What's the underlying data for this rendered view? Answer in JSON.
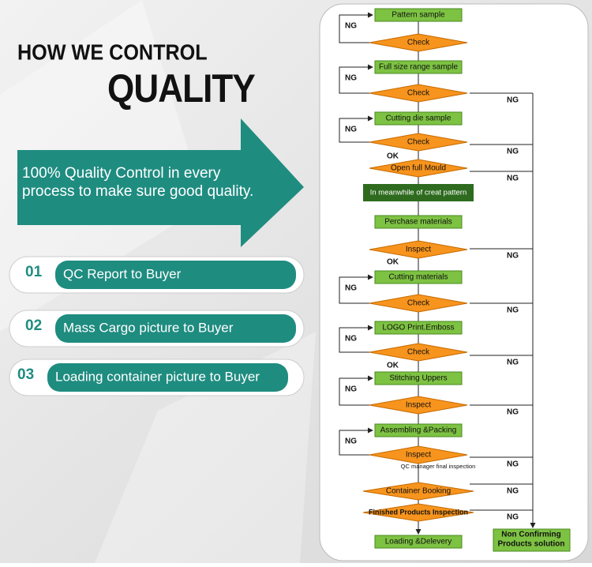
{
  "header": {
    "line1": "HOW WE CONTROL",
    "line2": "QUALITY"
  },
  "arrow_text": [
    "100% Quality Control in every",
    "process to make sure good quality."
  ],
  "items": [
    {
      "number": "01",
      "label": "QC Report to Buyer"
    },
    {
      "number": "02",
      "label": "Mass Cargo picture to Buyer"
    },
    {
      "number": "03",
      "label": "Loading container picture to Buyer"
    }
  ],
  "flow": {
    "nodes": [
      "Pattern sample",
      "Check",
      "Full size range sample",
      "Check",
      "Cutting die sample",
      "Check",
      "Open full Mould",
      "In meanwhile of creat pattern",
      "Perchase materials",
      "Inspect",
      "Cutting materials",
      "Check",
      "LOGO Print.Emboss",
      "Check",
      "Stitching Uppers",
      "Inspect",
      "Assembling &Packing",
      "Inspect",
      "QC manager final inspection",
      "Container Booking",
      "Finished Products Inspection",
      "Loading &Delevery"
    ],
    "side_box": [
      "Non Confirming",
      "Products solution"
    ],
    "left_ng": [
      "NG",
      "NG",
      "NG",
      "NG",
      "NG",
      "NG",
      "NG"
    ],
    "ok": [
      "OK",
      "OK",
      "OK"
    ],
    "right_ng": [
      "NG",
      "NG",
      "NG",
      "NG",
      "NG",
      "NG",
      "NG",
      "NG",
      "NG",
      "NG"
    ]
  }
}
